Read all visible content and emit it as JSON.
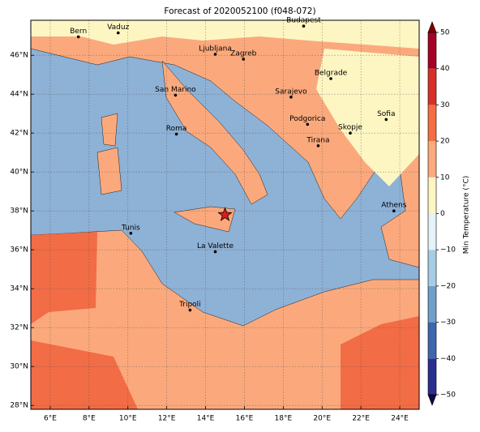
{
  "title": "Forecast of 2020052100 (f048-072)",
  "map": {
    "xlim": [
      5,
      25
    ],
    "ylim": [
      27.8,
      47.8
    ],
    "xticks": [
      {
        "value": 6,
        "label": "6°E"
      },
      {
        "value": 8,
        "label": "8°E"
      },
      {
        "value": 10,
        "label": "10°E"
      },
      {
        "value": 12,
        "label": "12°E"
      },
      {
        "value": 14,
        "label": "14°E"
      },
      {
        "value": 16,
        "label": "16°E"
      },
      {
        "value": 18,
        "label": "18°E"
      },
      {
        "value": 20,
        "label": "20°E"
      },
      {
        "value": 22,
        "label": "22°E"
      },
      {
        "value": 24,
        "label": "24°E"
      }
    ],
    "yticks": [
      {
        "value": 28,
        "label": "28°N"
      },
      {
        "value": 30,
        "label": "30°N"
      },
      {
        "value": 32,
        "label": "32°N"
      },
      {
        "value": 34,
        "label": "34°N"
      },
      {
        "value": 36,
        "label": "36°N"
      },
      {
        "value": 38,
        "label": "38°N"
      },
      {
        "value": 40,
        "label": "40°N"
      },
      {
        "value": 42,
        "label": "42°N"
      },
      {
        "value": 44,
        "label": "44°N"
      },
      {
        "value": 46,
        "label": "46°N"
      }
    ],
    "cities": [
      {
        "name": "Bern",
        "lon": 7.45,
        "lat": 46.95
      },
      {
        "name": "Vaduz",
        "lon": 9.5,
        "lat": 47.15
      },
      {
        "name": "Budapest",
        "lon": 19.05,
        "lat": 47.5
      },
      {
        "name": "Ljubljana",
        "lon": 14.5,
        "lat": 46.05
      },
      {
        "name": "Zagreb",
        "lon": 15.95,
        "lat": 45.8
      },
      {
        "name": "Belgrade",
        "lon": 20.45,
        "lat": 44.8
      },
      {
        "name": "San Marino",
        "lon": 12.45,
        "lat": 43.95
      },
      {
        "name": "Sarajevo",
        "lon": 18.4,
        "lat": 43.85
      },
      {
        "name": "Sofia",
        "lon": 23.3,
        "lat": 42.7
      },
      {
        "name": "Podgorica",
        "lon": 19.25,
        "lat": 42.45
      },
      {
        "name": "Skopje",
        "lon": 21.45,
        "lat": 42.0
      },
      {
        "name": "Roma",
        "lon": 12.5,
        "lat": 41.95
      },
      {
        "name": "Tirana",
        "lon": 19.8,
        "lat": 41.35
      },
      {
        "name": "Athens",
        "lon": 23.7,
        "lat": 38.0
      },
      {
        "name": "Tunis",
        "lon": 10.15,
        "lat": 36.85
      },
      {
        "name": "La Valette",
        "lon": 14.5,
        "lat": 35.9
      },
      {
        "name": "Tripoli",
        "lon": 13.2,
        "lat": 32.9
      }
    ],
    "marker": {
      "lon": 15.0,
      "lat": 37.8,
      "color": "#e31a1c"
    },
    "grid": true
  },
  "colorbar": {
    "label": "Min Temperature (°C)",
    "lim": [
      -50,
      50
    ],
    "ticks": [
      {
        "value": -50,
        "label": "−50"
      },
      {
        "value": -40,
        "label": "−40"
      },
      {
        "value": -30,
        "label": "−30"
      },
      {
        "value": -20,
        "label": "−20"
      },
      {
        "value": -10,
        "label": "−10"
      },
      0,
      10,
      20,
      30,
      40,
      50
    ],
    "colors": [
      "#2a2f8f",
      "#3f66ad",
      "#6f9fcb",
      "#a7cde3",
      "#e4f3f8",
      "#fdf6c3",
      "#fca97c",
      "#f46d43",
      "#d73027",
      "#a50026"
    ],
    "under_color": "#0b0b45",
    "over_color": "#7f0000"
  }
}
